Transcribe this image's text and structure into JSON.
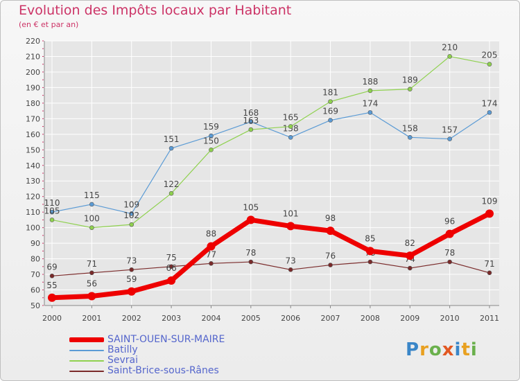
{
  "title": "Evolution des Impôts locaux par Habitant",
  "subtitle": "(en € et par an)",
  "logo": "Proxiti",
  "colors": {
    "title": "#cc3366",
    "axis": "#444444",
    "grid": "#ffffff",
    "legend_text": "#5566cc"
  },
  "chart_data": {
    "type": "line",
    "title": "Evolution des Impôts locaux par Habitant",
    "subtitle": "(en € et par an)",
    "xlabel": "",
    "ylabel": "",
    "ylim": [
      50,
      220
    ],
    "yticks": [
      50,
      60,
      70,
      80,
      90,
      100,
      110,
      120,
      130,
      140,
      150,
      160,
      170,
      180,
      190,
      200,
      210,
      220
    ],
    "x": [
      "2000",
      "2001",
      "2002",
      "2003",
      "2004",
      "2005",
      "2006",
      "2007",
      "2008",
      "2009",
      "2010",
      "2011"
    ],
    "grid": true,
    "legend_position": "bottom-left",
    "series": [
      {
        "name": "Batilly",
        "color": "#5b9bd5",
        "values": [
          110,
          115,
          109,
          151,
          159,
          168,
          158,
          169,
          174,
          158,
          157,
          174
        ],
        "labels": [
          "110",
          "115",
          "109",
          "151",
          "159",
          "168",
          "158",
          "169",
          "174",
          "158",
          "157",
          "174"
        ]
      },
      {
        "name": "Sevrai",
        "color": "#8fd14f",
        "values": [
          105,
          100,
          102,
          122,
          150,
          163,
          165,
          181,
          188,
          189,
          210,
          205
        ],
        "labels": [
          "105",
          "100",
          "102",
          "122",
          "150",
          "163",
          "165",
          "181",
          "188",
          "189",
          "210",
          "205"
        ]
      },
      {
        "name": "Saint-Brice-sous-Rânes",
        "color": "#7a2a2a",
        "values": [
          69,
          71,
          73,
          75,
          77,
          78,
          73,
          76,
          78,
          74,
          78,
          71
        ],
        "labels": [
          "69",
          "71",
          "73",
          "75",
          "77",
          "78",
          "73",
          "76",
          "78",
          "74",
          "78",
          "71"
        ]
      },
      {
        "name": "SAINT-OUEN-SUR-MAIRE",
        "color": "#ee0000",
        "values": [
          55,
          56,
          59,
          66,
          88,
          105,
          101,
          98,
          85,
          82,
          96,
          109
        ],
        "labels": [
          "55",
          "56",
          "59",
          "66",
          "88",
          "105",
          "101",
          "98",
          "85",
          "82",
          "96",
          "109"
        ]
      }
    ]
  },
  "legend": [
    {
      "label": "SAINT-OUEN-SUR-MAIRE",
      "color": "#ee0000"
    },
    {
      "label": "Batilly",
      "color": "#5b9bd5"
    },
    {
      "label": "Sevrai",
      "color": "#8fd14f"
    },
    {
      "label": "Saint-Brice-sous-Rânes",
      "color": "#7a2a2a"
    }
  ]
}
